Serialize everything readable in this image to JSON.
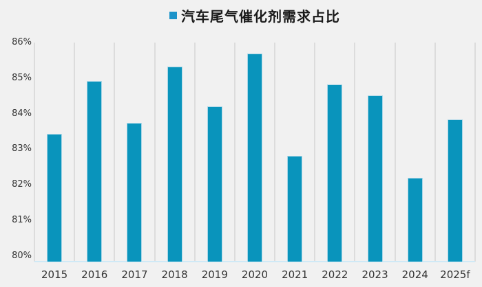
{
  "colors": {
    "background": "#f1f1f1",
    "bar": "#0994bc",
    "bar_border": "#a9d6e7",
    "legend_marker": "#1b93c9",
    "gridline": "#dcdcdc",
    "baseline": "#cfe9f6",
    "axis_text": "#333333",
    "legend_text": "#1a1a1a"
  },
  "chart_data": {
    "type": "bar",
    "series_name": "汽车尾气催化剂需求占比",
    "categories": [
      "2015",
      "2016",
      "2017",
      "2018",
      "2019",
      "2020",
      "2021",
      "2022",
      "2023",
      "2024",
      "2025f"
    ],
    "values": [
      83.5,
      84.95,
      83.8,
      85.35,
      84.25,
      85.7,
      82.9,
      84.85,
      84.55,
      82.3,
      83.9
    ],
    "unit": "%",
    "ylim": [
      80,
      86
    ],
    "ytick_step": 1,
    "yticks": [
      "80%",
      "81%",
      "82%",
      "83%",
      "84%",
      "85%",
      "86%"
    ],
    "grid": "vertical-only",
    "legend_position": "top-center"
  }
}
